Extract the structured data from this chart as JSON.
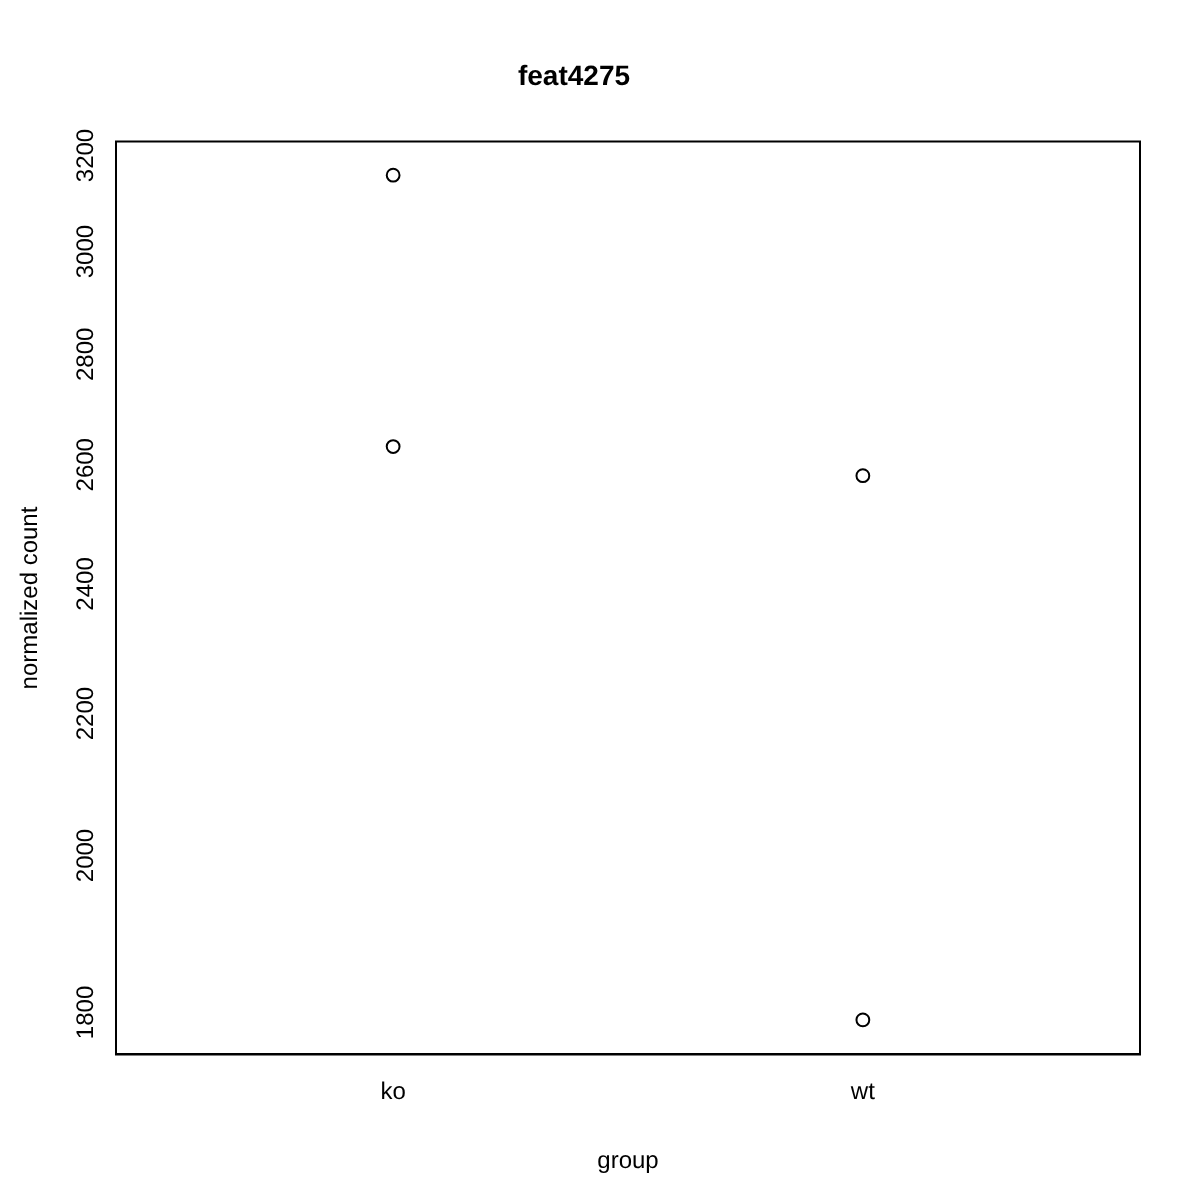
{
  "chart_data": {
    "type": "scatter",
    "title": "feat4275",
    "xlabel": "group",
    "ylabel": "normalized count",
    "categories": [
      "ko",
      "wt"
    ],
    "series": [
      {
        "color": "#000000",
        "x": [
          "ko",
          "ko",
          "wt",
          "wt"
        ],
        "values": [
          3158,
          2632,
          2581,
          1791
        ]
      }
    ],
    "ylim": [
      1750,
      3230
    ],
    "yticks": [
      1800,
      2000,
      2200,
      2400,
      2600,
      2800,
      3000,
      3200
    ],
    "log": "y",
    "grid": false,
    "legend": false,
    "marker": "circle"
  }
}
